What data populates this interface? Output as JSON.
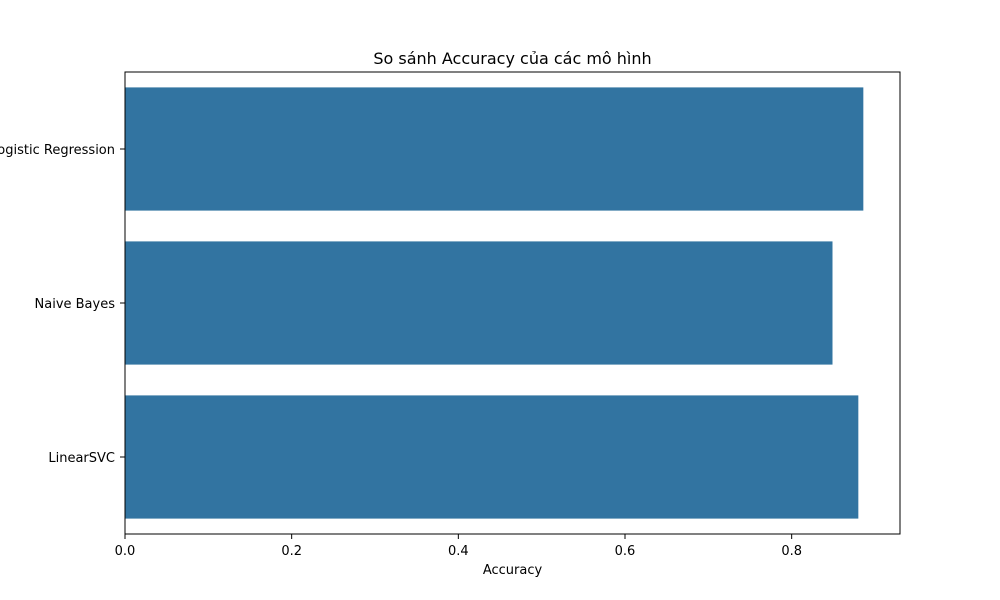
{
  "chart_data": {
    "type": "bar",
    "orientation": "horizontal",
    "title": "So sánh Accuracy của các mô hình",
    "xlabel": "Accuracy",
    "ylabel": "",
    "categories": [
      "Logistic Regression",
      "Naive Bayes",
      "LinearSVC"
    ],
    "values": [
      0.886,
      0.849,
      0.88
    ],
    "xlim": [
      0,
      0.93
    ],
    "xticks": [
      0.0,
      0.2,
      0.4,
      0.6,
      0.8
    ],
    "xtick_labels": [
      "0.0",
      "0.2",
      "0.4",
      "0.6",
      "0.8"
    ],
    "grid": false,
    "legend": "none",
    "bar_color": "#3274a1"
  }
}
